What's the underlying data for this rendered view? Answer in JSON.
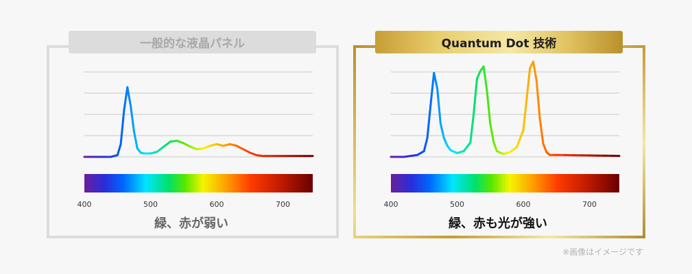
{
  "left_title": "一般的な液晶パネル",
  "right_title": "Quantum Dot 技術",
  "left_caption": "緑、赤が弱い",
  "right_caption": "緑、赤も光が強い",
  "note": "※画像はイメージです",
  "colors": {
    "gold": "#c9a13b",
    "gray_border": "#dcdcdc",
    "gridline": "#c8c8c8"
  },
  "chart_data": [
    {
      "type": "line",
      "title": "一般的な液晶パネル",
      "xlabel": "",
      "ylabel": "",
      "xlim": [
        400,
        745
      ],
      "ylim": [
        0,
        1
      ],
      "grid": true,
      "x_ticks": [
        400,
        500,
        600,
        700
      ],
      "x": [
        400,
        420,
        440,
        450,
        455,
        460,
        465,
        470,
        475,
        480,
        485,
        490,
        500,
        510,
        520,
        530,
        540,
        550,
        560,
        570,
        580,
        590,
        600,
        610,
        620,
        630,
        640,
        650,
        660,
        670,
        680,
        700,
        720,
        745
      ],
      "y": [
        0,
        0,
        0,
        0.02,
        0.15,
        0.55,
        0.82,
        0.6,
        0.3,
        0.1,
        0.05,
        0.04,
        0.04,
        0.06,
        0.12,
        0.18,
        0.19,
        0.16,
        0.12,
        0.09,
        0.1,
        0.13,
        0.15,
        0.13,
        0.15,
        0.13,
        0.09,
        0.05,
        0.02,
        0.01,
        0.01,
        0.01,
        0.01,
        0.01
      ]
    },
    {
      "type": "line",
      "title": "Quantum Dot 技術",
      "xlabel": "",
      "ylabel": "",
      "xlim": [
        400,
        745
      ],
      "ylim": [
        0,
        1
      ],
      "grid": true,
      "x_ticks": [
        400,
        500,
        600,
        700
      ],
      "x": [
        400,
        420,
        440,
        450,
        455,
        460,
        465,
        470,
        475,
        480,
        485,
        490,
        500,
        510,
        520,
        525,
        530,
        535,
        540,
        545,
        550,
        555,
        560,
        570,
        580,
        590,
        600,
        605,
        610,
        615,
        620,
        625,
        630,
        635,
        640,
        650,
        700,
        745
      ],
      "y": [
        0,
        0,
        0.02,
        0.06,
        0.2,
        0.55,
        0.88,
        0.72,
        0.35,
        0.2,
        0.12,
        0.07,
        0.04,
        0.06,
        0.15,
        0.45,
        0.82,
        0.9,
        0.95,
        0.7,
        0.35,
        0.16,
        0.06,
        0.03,
        0.05,
        0.1,
        0.28,
        0.6,
        0.93,
        1.0,
        0.8,
        0.4,
        0.14,
        0.05,
        0.02,
        0.02,
        0.015,
        0.01
      ]
    }
  ]
}
